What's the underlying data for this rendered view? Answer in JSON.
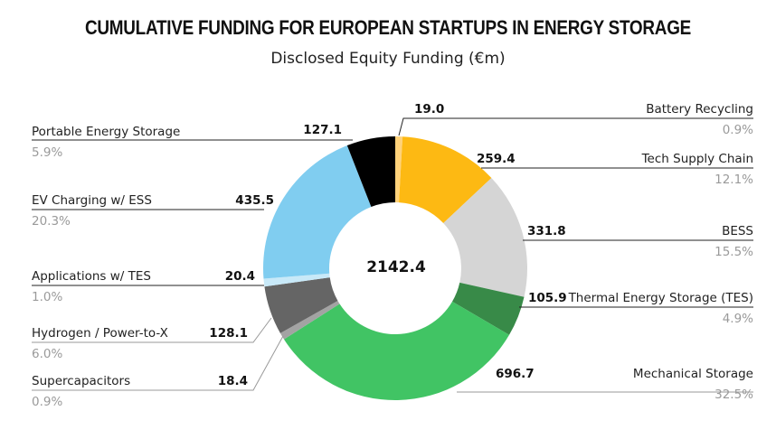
{
  "chart_data": {
    "type": "pie",
    "donut": true,
    "title": "CUMULATIVE FUNDING FOR EUROPEAN STARTUPS IN ENERGY STORAGE",
    "subtitle": "Disclosed Equity Funding (€m)",
    "total": "2142.4",
    "slices": [
      {
        "name": "Battery Recycling",
        "value": 19.0,
        "value_label": "19.0",
        "percent": "0.9%",
        "color": "#FFD27A"
      },
      {
        "name": "Tech Supply Chain",
        "value": 259.4,
        "value_label": "259.4",
        "percent": "12.1%",
        "color": "#FDB913"
      },
      {
        "name": "BESS",
        "value": 331.8,
        "value_label": "331.8",
        "percent": "15.5%",
        "color": "#D5D5D5"
      },
      {
        "name": "Thermal Energy Storage (TES)",
        "value": 105.9,
        "value_label": "105.9",
        "percent": "4.9%",
        "color": "#388A48"
      },
      {
        "name": "Mechanical Storage",
        "value": 696.7,
        "value_label": "696.7",
        "percent": "32.5%",
        "color": "#41C464"
      },
      {
        "name": "Supercapacitors",
        "value": 18.4,
        "value_label": "18.4",
        "percent": "0.9%",
        "color": "#A3A3A3"
      },
      {
        "name": "Hydrogen / Power-to-X",
        "value": 128.1,
        "value_label": "128.1",
        "percent": "6.0%",
        "color": "#656565"
      },
      {
        "name": "Applications w/ TES",
        "value": 20.4,
        "value_label": "20.4",
        "percent": "1.0%",
        "color": "#C8E9F8"
      },
      {
        "name": "EV Charging w/ ESS",
        "value": 435.5,
        "value_label": "435.5",
        "percent": "20.3%",
        "color": "#80CDF0"
      },
      {
        "name": "Portable Energy Storage",
        "value": 127.1,
        "value_label": "127.1",
        "percent": "5.9%",
        "color": "#000000"
      }
    ]
  }
}
